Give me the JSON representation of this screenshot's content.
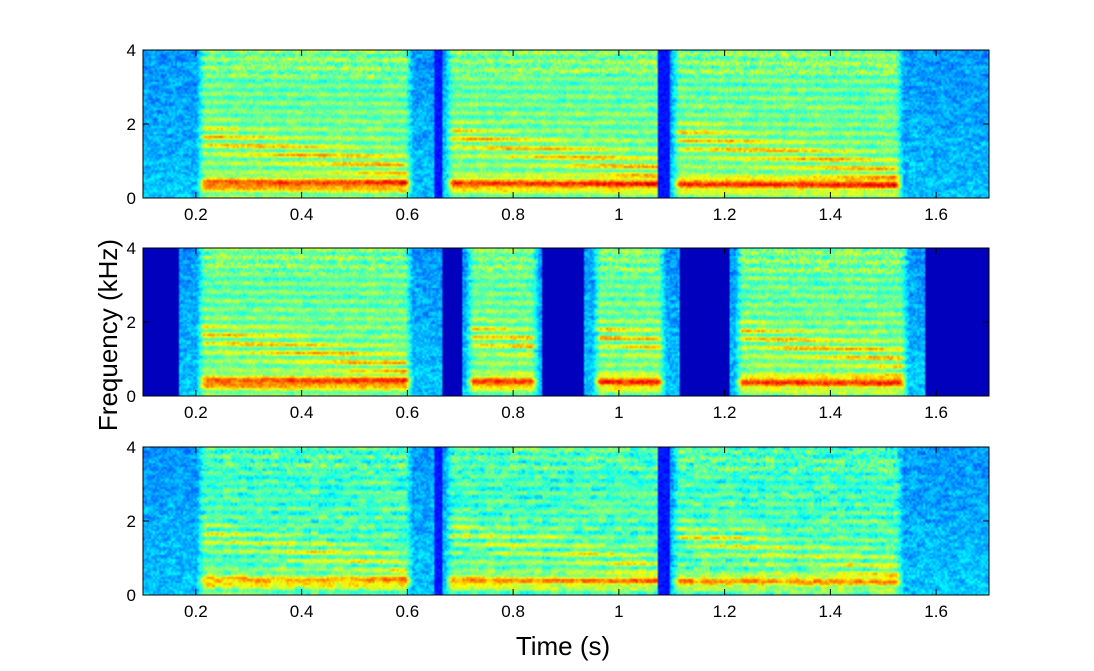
{
  "chart_data": {
    "type": "heatmap",
    "xlabel": "Time (s)",
    "ylabel": "Frequency (kHz)",
    "xlim": [
      0.1,
      1.7
    ],
    "ylim": [
      0,
      4
    ],
    "x_ticks": [
      "0.2",
      "0.4",
      "0.6",
      "0.8",
      "1",
      "1.2",
      "1.4",
      "1.6"
    ],
    "x_tick_values": [
      0.2,
      0.4,
      0.6,
      0.8,
      1.0,
      1.2,
      1.4,
      1.6
    ],
    "y_ticks": [
      "0",
      "2",
      "4"
    ],
    "y_tick_values": [
      0,
      2,
      4
    ],
    "colormap": "jet",
    "colors": [
      "#00008f",
      "#0000ff",
      "#00ffff",
      "#ffff00",
      "#ff0000",
      "#800000"
    ],
    "panels": [
      {
        "id": "top",
        "floor": 0.32,
        "speech_segments": [
          [
            0.2,
            0.61
          ],
          [
            0.67,
            1.09
          ],
          [
            1.1,
            1.54
          ]
        ],
        "silent_gaps": [
          [
            0.65,
            0.665
          ],
          [
            1.075,
            1.095
          ]
        ],
        "masked_regions": []
      },
      {
        "id": "middle",
        "floor": 0.32,
        "speech_segments": [
          [
            0.2,
            0.61
          ],
          [
            0.71,
            0.85
          ],
          [
            0.95,
            1.09
          ],
          [
            1.22,
            1.55
          ]
        ],
        "silent_gaps": [],
        "masked_regions": [
          [
            0.1,
            0.165
          ],
          [
            0.665,
            0.705
          ],
          [
            0.855,
            0.935
          ],
          [
            1.115,
            1.21
          ],
          [
            1.58,
            1.7
          ]
        ]
      },
      {
        "id": "bottom",
        "floor": 0.32,
        "speech_segments": [
          [
            0.2,
            0.61
          ],
          [
            0.67,
            1.09
          ],
          [
            1.1,
            1.54
          ]
        ],
        "silent_gaps": [
          [
            0.65,
            0.665
          ],
          [
            1.075,
            1.095
          ]
        ],
        "masked_regions": []
      }
    ]
  }
}
